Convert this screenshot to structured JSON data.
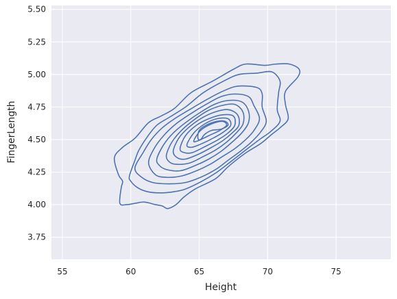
{
  "chart_data": {
    "type": "contour",
    "style": "seaborn-darkgrid kde contour",
    "xlabel": "Height",
    "ylabel": "FingerLength",
    "xlim": [
      54.2,
      79.0
    ],
    "ylim": [
      3.58,
      5.53
    ],
    "x_ticks": [
      55,
      60,
      65,
      70,
      75
    ],
    "y_ticks": [
      3.75,
      4.0,
      4.25,
      4.5,
      4.75,
      5.0,
      5.25,
      5.5
    ],
    "x_tick_labels": [
      "55",
      "60",
      "65",
      "70",
      "75"
    ],
    "y_tick_labels": [
      "3.75",
      "4.00",
      "4.25",
      "4.50",
      "4.75",
      "5.00",
      "5.25",
      "5.50"
    ],
    "grid": true,
    "colors": {
      "background": "#eaeaf2",
      "grid": "#ffffff",
      "contour": "#4c72b0"
    },
    "contour_levels": [
      {
        "level": 1,
        "points": [
          [
            59.2,
            4.01
          ],
          [
            59.3,
            4.13
          ],
          [
            59.4,
            4.18
          ],
          [
            59.1,
            4.23
          ],
          [
            58.8,
            4.36
          ],
          [
            59.4,
            4.44
          ],
          [
            60.3,
            4.51
          ],
          [
            61.3,
            4.63
          ],
          [
            62.2,
            4.68
          ],
          [
            63.2,
            4.74
          ],
          [
            64.4,
            4.86
          ],
          [
            66.0,
            4.95
          ],
          [
            67.5,
            5.04
          ],
          [
            68.4,
            5.08
          ],
          [
            69.8,
            5.07
          ],
          [
            70.6,
            5.08
          ],
          [
            71.6,
            5.08
          ],
          [
            72.3,
            5.04
          ],
          [
            72.2,
            4.98
          ],
          [
            71.3,
            4.87
          ],
          [
            71.3,
            4.77
          ],
          [
            71.5,
            4.66
          ],
          [
            70.9,
            4.59
          ],
          [
            70.3,
            4.54
          ],
          [
            69.5,
            4.47
          ],
          [
            68.3,
            4.39
          ],
          [
            67.1,
            4.29
          ],
          [
            66.2,
            4.2
          ],
          [
            64.7,
            4.12
          ],
          [
            63.9,
            4.06
          ],
          [
            63.3,
            4.0
          ],
          [
            62.7,
            3.97
          ],
          [
            62.3,
            3.99
          ],
          [
            61.8,
            4.0
          ],
          [
            61.0,
            4.02
          ],
          [
            60.3,
            4.01
          ],
          [
            59.7,
            4.0
          ]
        ]
      },
      {
        "level": 2,
        "points": [
          [
            59.9,
            4.22
          ],
          [
            60.3,
            4.34
          ],
          [
            60.6,
            4.42
          ],
          [
            61.2,
            4.52
          ],
          [
            61.9,
            4.61
          ],
          [
            62.8,
            4.67
          ],
          [
            64.0,
            4.75
          ],
          [
            65.3,
            4.86
          ],
          [
            66.8,
            4.95
          ],
          [
            67.9,
            5.0
          ],
          [
            69.2,
            5.01
          ],
          [
            70.3,
            5.02
          ],
          [
            70.9,
            4.95
          ],
          [
            70.8,
            4.86
          ],
          [
            70.7,
            4.73
          ],
          [
            70.9,
            4.64
          ],
          [
            70.2,
            4.56
          ],
          [
            69.4,
            4.5
          ],
          [
            68.4,
            4.42
          ],
          [
            67.3,
            4.33
          ],
          [
            66.3,
            4.25
          ],
          [
            65.2,
            4.18
          ],
          [
            64.0,
            4.12
          ],
          [
            63.2,
            4.1
          ],
          [
            62.2,
            4.09
          ],
          [
            61.2,
            4.1
          ],
          [
            60.5,
            4.13
          ],
          [
            60.0,
            4.18
          ]
        ]
      },
      {
        "level": 3,
        "points": [
          [
            60.3,
            4.28
          ],
          [
            60.9,
            4.4
          ],
          [
            61.5,
            4.5
          ],
          [
            62.3,
            4.59
          ],
          [
            63.2,
            4.66
          ],
          [
            64.3,
            4.73
          ],
          [
            65.6,
            4.81
          ],
          [
            66.7,
            4.87
          ],
          [
            67.8,
            4.91
          ],
          [
            69.2,
            4.9
          ],
          [
            69.6,
            4.85
          ],
          [
            69.6,
            4.75
          ],
          [
            69.9,
            4.64
          ],
          [
            69.5,
            4.56
          ],
          [
            68.8,
            4.48
          ],
          [
            68.0,
            4.41
          ],
          [
            67.1,
            4.34
          ],
          [
            66.2,
            4.27
          ],
          [
            65.1,
            4.21
          ],
          [
            64.0,
            4.17
          ],
          [
            62.8,
            4.16
          ],
          [
            61.6,
            4.17
          ],
          [
            60.8,
            4.21
          ]
        ]
      },
      {
        "level": 4,
        "points": [
          [
            61.3,
            4.32
          ],
          [
            61.7,
            4.43
          ],
          [
            62.4,
            4.53
          ],
          [
            63.3,
            4.62
          ],
          [
            64.4,
            4.7
          ],
          [
            65.5,
            4.77
          ],
          [
            66.6,
            4.83
          ],
          [
            67.6,
            4.85
          ],
          [
            68.6,
            4.83
          ],
          [
            69.0,
            4.76
          ],
          [
            69.4,
            4.66
          ],
          [
            69.0,
            4.57
          ],
          [
            68.4,
            4.5
          ],
          [
            67.6,
            4.43
          ],
          [
            66.7,
            4.37
          ],
          [
            65.8,
            4.31
          ],
          [
            64.8,
            4.26
          ],
          [
            63.7,
            4.22
          ],
          [
            62.6,
            4.21
          ],
          [
            61.8,
            4.23
          ]
        ]
      },
      {
        "level": 5,
        "points": [
          [
            61.9,
            4.35
          ],
          [
            62.4,
            4.46
          ],
          [
            63.1,
            4.55
          ],
          [
            64.0,
            4.63
          ],
          [
            65.1,
            4.71
          ],
          [
            66.1,
            4.77
          ],
          [
            67.1,
            4.8
          ],
          [
            68.1,
            4.79
          ],
          [
            68.6,
            4.72
          ],
          [
            68.6,
            4.63
          ],
          [
            68.1,
            4.55
          ],
          [
            67.4,
            4.48
          ],
          [
            66.6,
            4.41
          ],
          [
            65.7,
            4.35
          ],
          [
            64.7,
            4.3
          ],
          [
            63.6,
            4.26
          ],
          [
            62.6,
            4.27
          ],
          [
            62.1,
            4.3
          ]
        ]
      },
      {
        "level": 6,
        "points": [
          [
            62.6,
            4.38
          ],
          [
            63.0,
            4.48
          ],
          [
            63.7,
            4.57
          ],
          [
            64.6,
            4.65
          ],
          [
            65.6,
            4.72
          ],
          [
            66.6,
            4.76
          ],
          [
            67.6,
            4.77
          ],
          [
            68.2,
            4.71
          ],
          [
            68.2,
            4.62
          ],
          [
            67.7,
            4.55
          ],
          [
            67.0,
            4.48
          ],
          [
            66.2,
            4.42
          ],
          [
            65.3,
            4.37
          ],
          [
            64.3,
            4.32
          ],
          [
            63.3,
            4.31
          ],
          [
            62.8,
            4.33
          ]
        ]
      },
      {
        "level": 7,
        "points": [
          [
            63.1,
            4.41
          ],
          [
            63.5,
            4.51
          ],
          [
            64.2,
            4.59
          ],
          [
            65.1,
            4.66
          ],
          [
            66.1,
            4.71
          ],
          [
            67.1,
            4.73
          ],
          [
            67.8,
            4.69
          ],
          [
            67.9,
            4.61
          ],
          [
            67.4,
            4.55
          ],
          [
            66.7,
            4.49
          ],
          [
            65.9,
            4.44
          ],
          [
            65.0,
            4.39
          ],
          [
            64.0,
            4.35
          ],
          [
            63.4,
            4.36
          ]
        ]
      },
      {
        "level": 8,
        "points": [
          [
            63.6,
            4.43
          ],
          [
            64.0,
            4.53
          ],
          [
            64.8,
            4.61
          ],
          [
            65.7,
            4.66
          ],
          [
            66.7,
            4.69
          ],
          [
            67.5,
            4.68
          ],
          [
            67.6,
            4.61
          ],
          [
            67.1,
            4.55
          ],
          [
            66.4,
            4.5
          ],
          [
            65.5,
            4.45
          ],
          [
            64.5,
            4.4
          ],
          [
            63.9,
            4.4
          ]
        ]
      },
      {
        "level": 9,
        "points": [
          [
            64.1,
            4.46
          ],
          [
            64.6,
            4.55
          ],
          [
            65.4,
            4.62
          ],
          [
            66.3,
            4.66
          ],
          [
            67.1,
            4.66
          ],
          [
            67.3,
            4.61
          ],
          [
            66.8,
            4.56
          ],
          [
            66.0,
            4.51
          ],
          [
            65.0,
            4.46
          ],
          [
            64.4,
            4.44
          ]
        ]
      },
      {
        "level": 10,
        "points": [
          [
            64.6,
            4.49
          ],
          [
            65.1,
            4.57
          ],
          [
            65.9,
            4.62
          ],
          [
            66.7,
            4.64
          ],
          [
            67.0,
            4.61
          ],
          [
            66.5,
            4.57
          ],
          [
            65.7,
            4.53
          ],
          [
            64.9,
            4.49
          ]
        ]
      },
      {
        "level": 11,
        "points": [
          [
            64.9,
            4.51
          ],
          [
            65.0,
            4.57
          ],
          [
            65.5,
            4.61
          ],
          [
            66.3,
            4.64
          ],
          [
            66.9,
            4.64
          ],
          [
            67.1,
            4.61
          ],
          [
            66.6,
            4.58
          ],
          [
            65.9,
            4.57
          ],
          [
            65.4,
            4.54
          ],
          [
            65.1,
            4.5
          ]
        ]
      }
    ]
  }
}
